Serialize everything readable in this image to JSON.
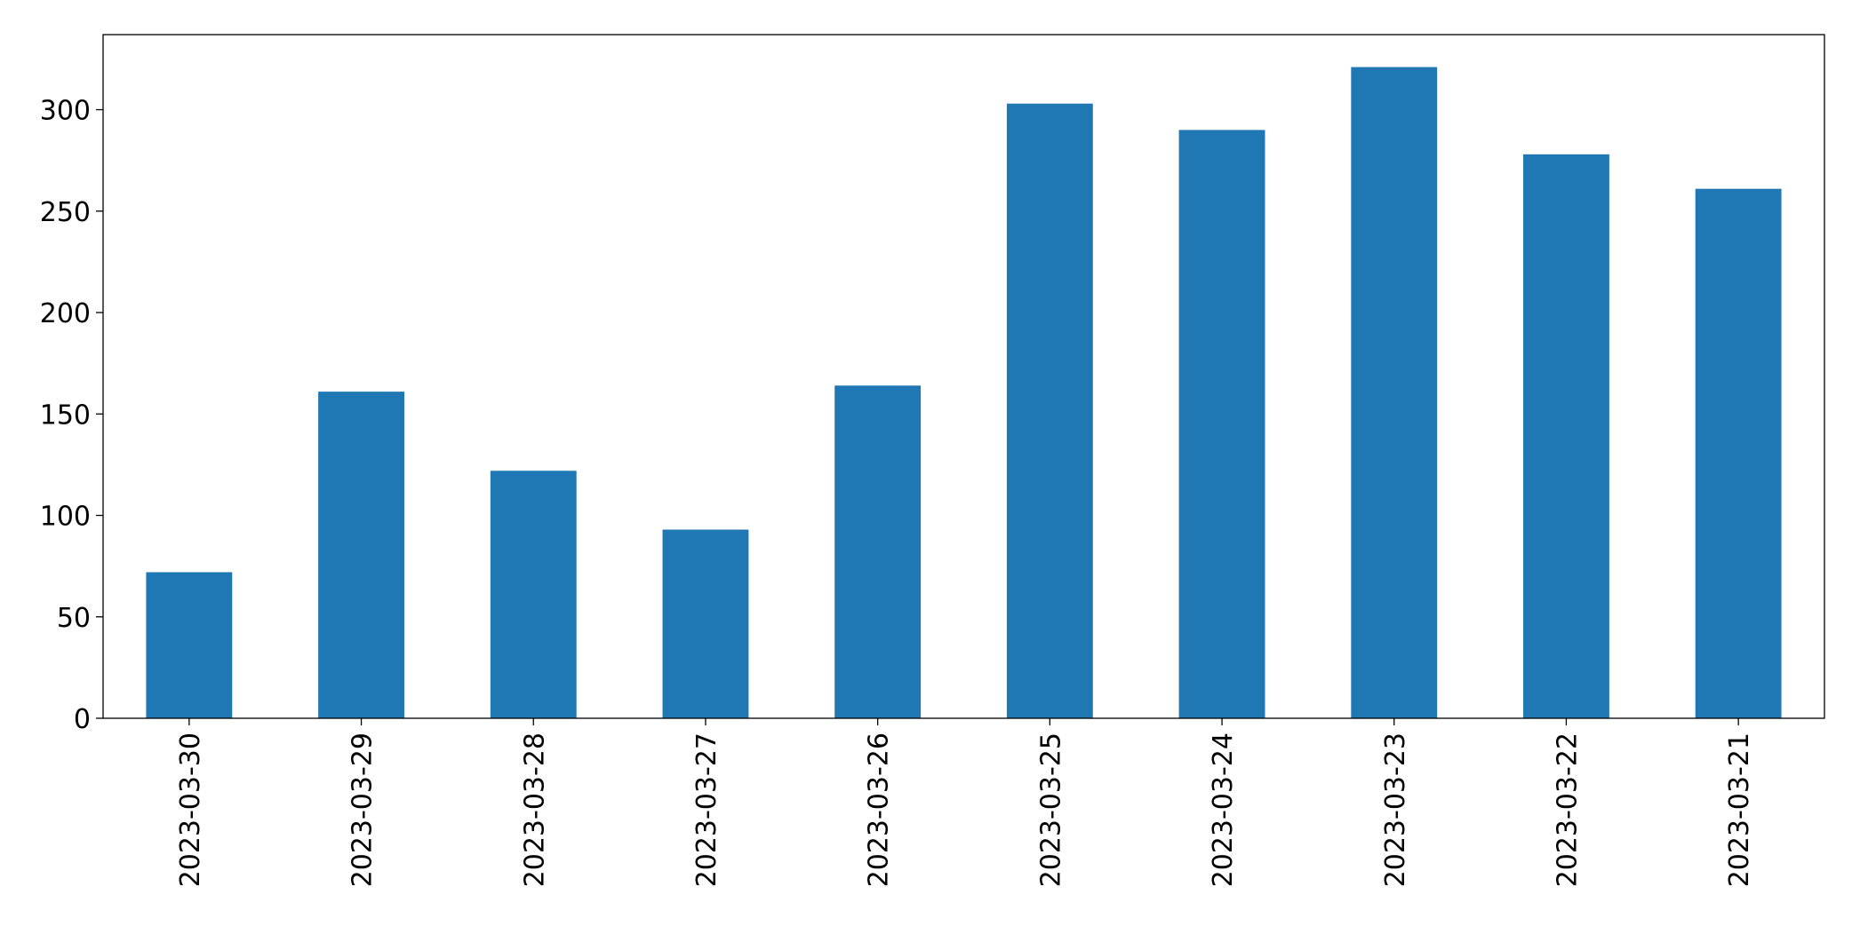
{
  "chart_data": {
    "type": "bar",
    "categories": [
      "2023-03-30",
      "2023-03-29",
      "2023-03-28",
      "2023-03-27",
      "2023-03-26",
      "2023-03-25",
      "2023-03-24",
      "2023-03-23",
      "2023-03-22",
      "2023-03-21"
    ],
    "values": [
      72,
      161,
      122,
      93,
      164,
      303,
      290,
      321,
      278,
      261
    ],
    "color": "#1f77b4",
    "ylim": [
      0,
      337
    ],
    "yticks": [
      0,
      50,
      100,
      150,
      200,
      250,
      300
    ],
    "grid": false
  }
}
